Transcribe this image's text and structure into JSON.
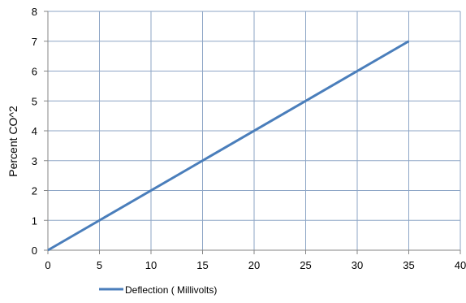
{
  "chart_data": {
    "type": "line",
    "title": "",
    "xlabel": "",
    "ylabel": "Percent CO^2",
    "xlim": [
      0,
      40
    ],
    "ylim": [
      0,
      8
    ],
    "x_ticks": [
      0,
      5,
      10,
      15,
      20,
      25,
      30,
      35,
      40
    ],
    "y_ticks": [
      0,
      1,
      2,
      3,
      4,
      5,
      6,
      7,
      8
    ],
    "grid": true,
    "legend_position": "bottom",
    "series": [
      {
        "name": "Deflection ( Millivolts)",
        "color": "#4a7ebb",
        "x": [
          0,
          35
        ],
        "y": [
          0,
          7
        ]
      }
    ],
    "colors": {
      "grid": "#8ea6c6",
      "axis": "#868686",
      "line": "#4a7ebb"
    }
  }
}
